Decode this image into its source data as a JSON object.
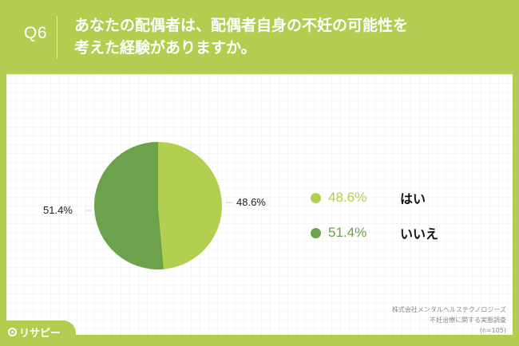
{
  "header": {
    "question_number": "Q6",
    "title_line1": "あなたの配偶者は、配偶者自身の不妊の可能性を",
    "title_line2": "考えた経験がありますか。"
  },
  "colors": {
    "brand_green": "#b2cd50",
    "slice_yes": "#b3cf4f",
    "slice_no": "#6ca24c",
    "background_card": "#ffffff"
  },
  "legend": [
    {
      "pct": "48.6%",
      "label": "はい",
      "color": "#b3cf4f"
    },
    {
      "pct": "51.4%",
      "label": "いいえ",
      "color": "#6ca24c"
    }
  ],
  "pie_labels": {
    "yes": "48.6%",
    "no": "51.4%"
  },
  "source": {
    "line1": "株式会社メンタルヘルステクノロジーズ",
    "line2": "不妊治療に関する実態調査",
    "line3": "(n=105)"
  },
  "logo": {
    "text": "リサピー"
  },
  "chart_data": {
    "type": "pie",
    "title": "あなたの配偶者は、配偶者自身の不妊の可能性を考えた経験がありますか。",
    "categories": [
      "はい",
      "いいえ"
    ],
    "values": [
      48.6,
      51.4
    ],
    "unit": "%",
    "colors": [
      "#b3cf4f",
      "#6ca24c"
    ],
    "start_angle": "top (12 o'clock), clockwise",
    "legend_position": "right",
    "n": 105,
    "grid": false
  }
}
